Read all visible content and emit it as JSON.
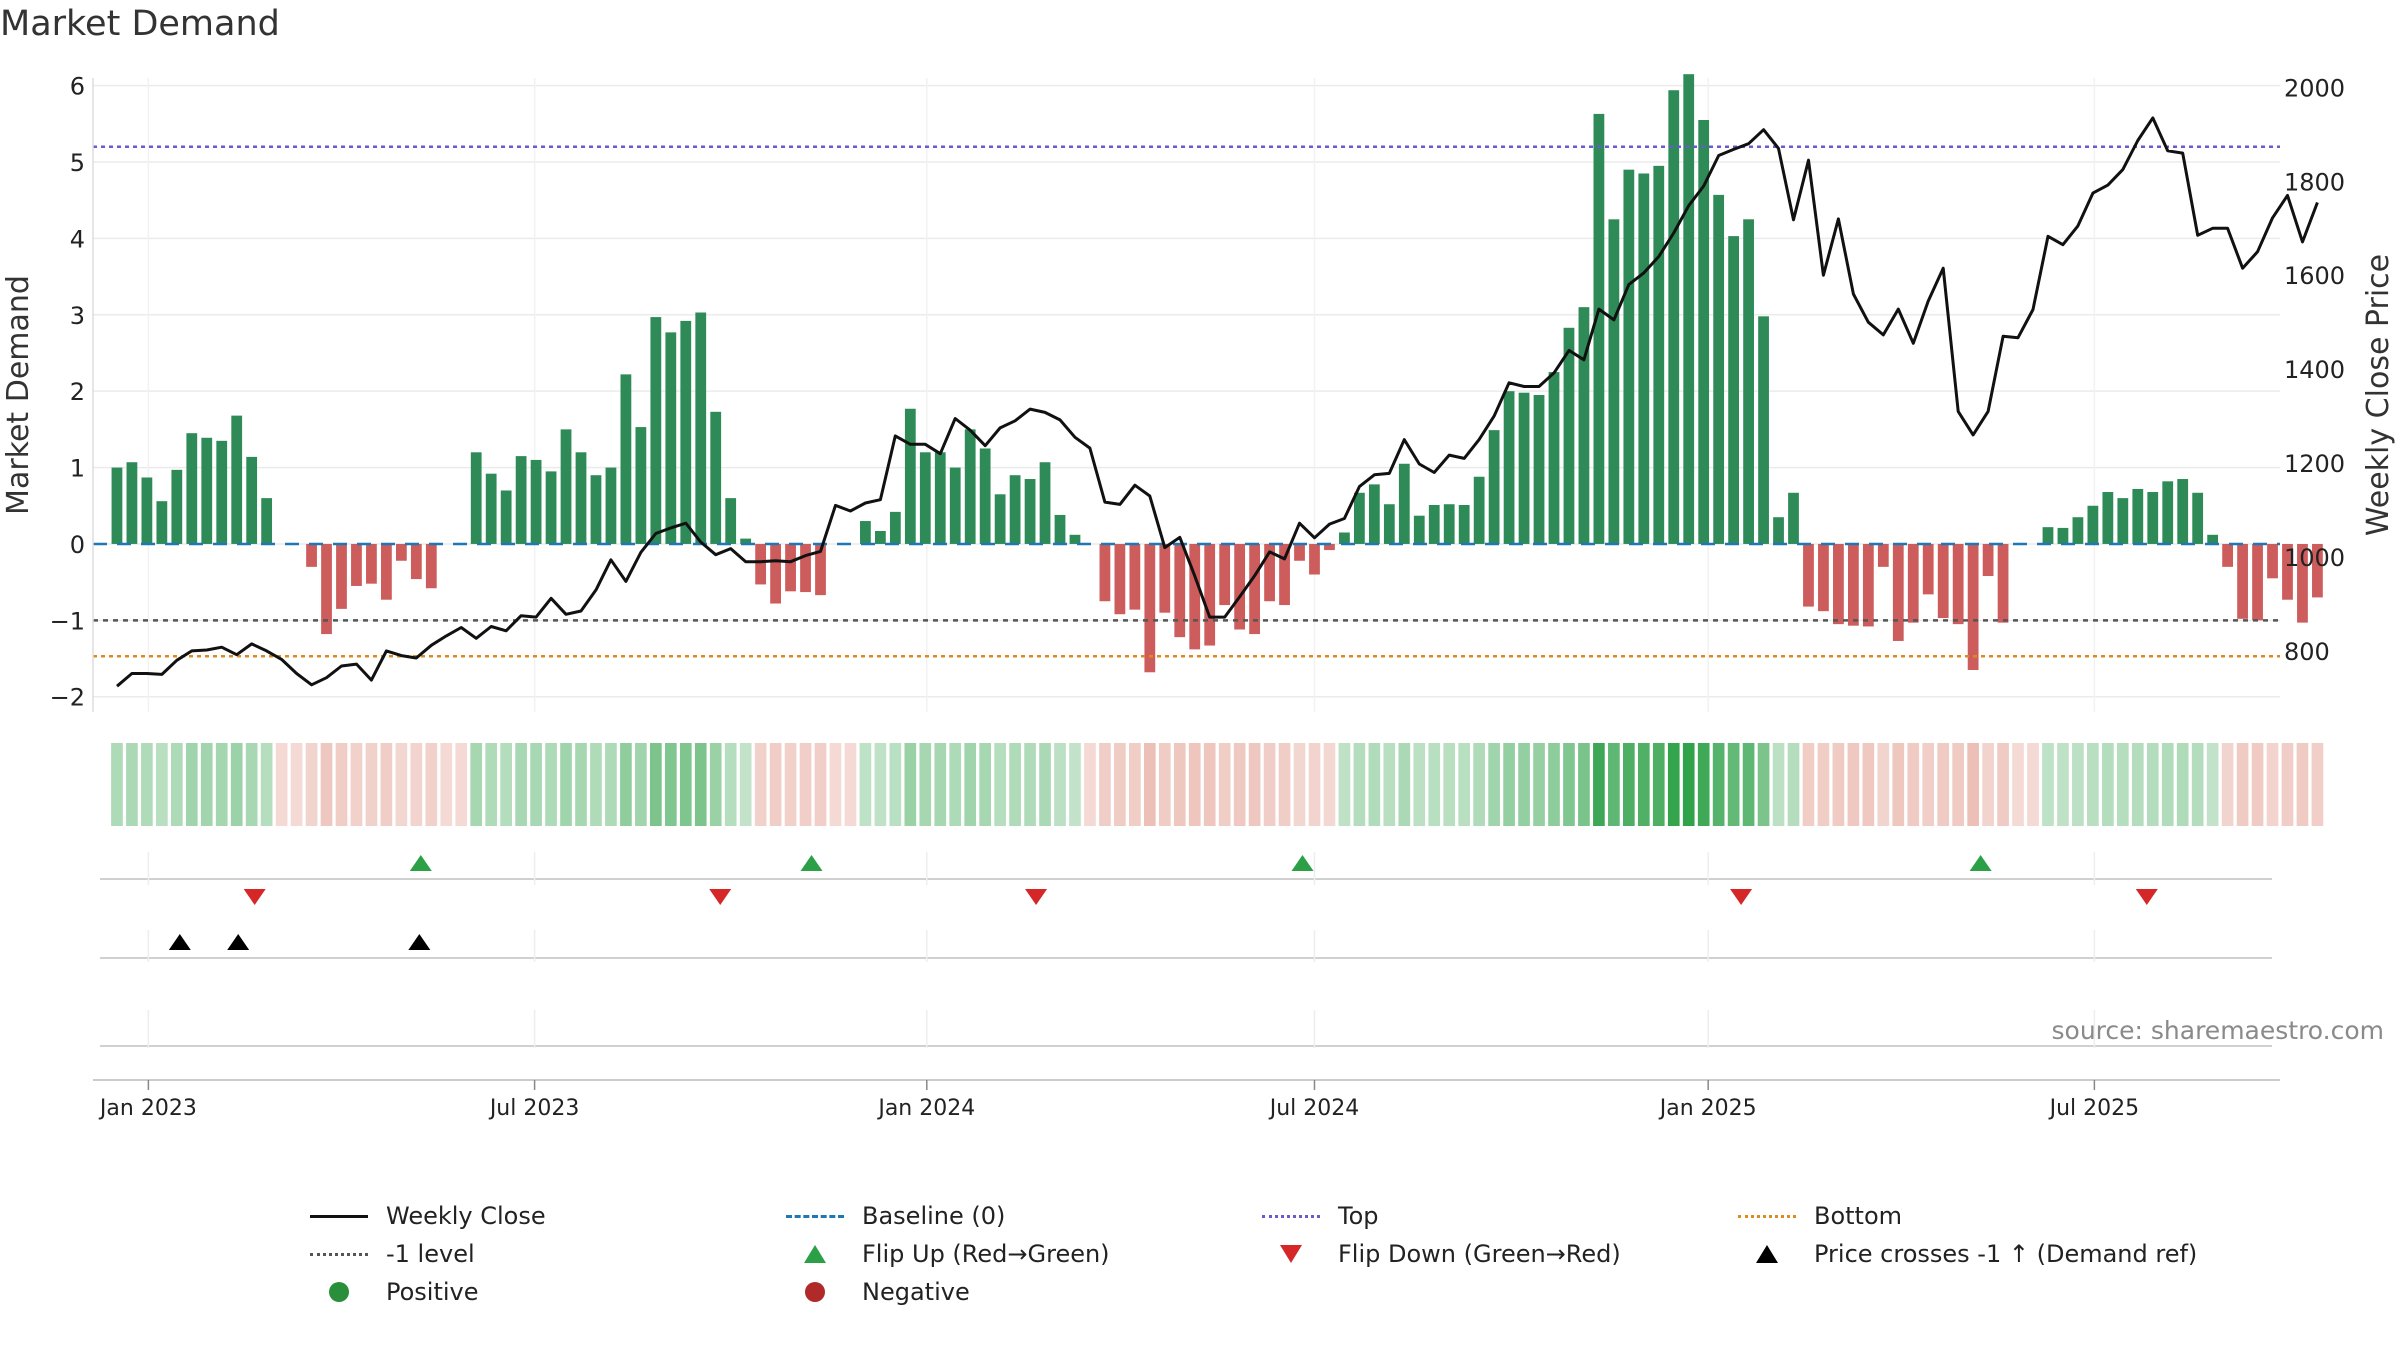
{
  "title": "Market Demand",
  "source": "source: sharemaestro.com",
  "colors": {
    "positive_bar": "#2e8b57",
    "negative_bar": "#cd5c5c",
    "close_line": "#111111",
    "baseline": "#1f77b4",
    "top": "#6a5acd",
    "bottom": "#e08a1e",
    "minus1": "#555555",
    "flip_up": "#2ca046",
    "flip_down": "#d62728",
    "cross": "#000000",
    "heat_pos": "#2ca046",
    "heat_neg": "#d9826f"
  },
  "chart_data": {
    "type": "bar+line",
    "title": "Market Demand",
    "ylabel": "Market Demand",
    "y2label": "Weekly Close Price",
    "ylim": [
      -2.2,
      6.1
    ],
    "y2lim": [
      670,
      2020
    ],
    "yticks": [
      -2,
      -1,
      0,
      1,
      2,
      3,
      4,
      5,
      6
    ],
    "ytick_labels": [
      "−2",
      "−1",
      "0",
      "1",
      "2",
      "3",
      "4",
      "5",
      "6"
    ],
    "y2ticks": [
      800,
      1000,
      1200,
      1400,
      1600,
      1800,
      2000
    ],
    "y2tick_labels": [
      "800",
      "1000",
      "1200",
      "1400",
      "1600",
      "1800",
      "2000"
    ],
    "x_start": "2022-12-19",
    "x_range_weeks": [
      -1.6,
      144.5
    ],
    "xticks": [
      {
        "label": "Jan 2023",
        "week": 2.1
      },
      {
        "label": "Jul 2023",
        "week": 27.9
      },
      {
        "label": "Jan 2024",
        "week": 54.1
      },
      {
        "label": "Jul 2024",
        "week": 80.0
      },
      {
        "label": "Jan 2025",
        "week": 106.3
      },
      {
        "label": "Jul 2025",
        "week": 132.1
      }
    ],
    "reference_lines": {
      "top": 5.2,
      "bottom": -1.47,
      "minus1": -1.0,
      "baseline": 0
    },
    "series": [
      {
        "name": "Market Demand",
        "type": "bar",
        "values": [
          1.0,
          1.07,
          0.87,
          0.56,
          0.97,
          1.45,
          1.39,
          1.35,
          1.68,
          1.14,
          0.6,
          0,
          0,
          -0.3,
          -1.18,
          -0.85,
          -0.55,
          -0.52,
          -0.73,
          -0.22,
          -0.46,
          -0.58,
          0,
          0,
          1.2,
          0.92,
          0.7,
          1.15,
          1.1,
          0.95,
          1.5,
          1.2,
          0.9,
          1.0,
          2.22,
          1.53,
          2.97,
          2.77,
          2.92,
          3.03,
          1.73,
          0.6,
          0.07,
          -0.53,
          -0.78,
          -0.62,
          -0.63,
          -0.67,
          0,
          0,
          0.3,
          0.17,
          0.42,
          1.77,
          1.2,
          1.2,
          1.0,
          1.5,
          1.25,
          0.65,
          0.9,
          0.85,
          1.07,
          0.38,
          0.12,
          0,
          -0.75,
          -0.92,
          -0.86,
          -1.68,
          -0.9,
          -1.22,
          -1.38,
          -1.33,
          -0.8,
          -1.12,
          -1.18,
          -0.75,
          -0.8,
          -0.22,
          -0.4,
          -0.08,
          0.15,
          0.67,
          0.78,
          0.52,
          1.05,
          0.37,
          0.51,
          0.52,
          0.51,
          0.88,
          1.49,
          2.0,
          1.98,
          1.95,
          2.25,
          2.83,
          3.1,
          5.63,
          4.25,
          4.9,
          4.85,
          4.95,
          5.94,
          6.15,
          5.55,
          4.57,
          4.03,
          4.25,
          2.98,
          0.35,
          0.67,
          -0.82,
          -0.88,
          -1.05,
          -1.07,
          -1.08,
          -0.3,
          -1.27,
          -1.03,
          -0.66,
          -0.97,
          -1.05,
          -1.65,
          -0.42,
          -1.03,
          0,
          0,
          0.22,
          0.21,
          0.35,
          0.5,
          0.68,
          0.6,
          0.72,
          0.68,
          0.82,
          0.85,
          0.67,
          0.12,
          -0.3,
          -0.98,
          -1.0,
          -0.45,
          -0.73,
          -1.03,
          -0.7
        ]
      },
      {
        "name": "Weekly Close",
        "type": "line",
        "axis": "y2",
        "values": [
          725,
          752,
          752,
          750,
          780,
          800,
          802,
          808,
          792,
          815,
          800,
          782,
          752,
          728,
          743,
          768,
          772,
          738,
          800,
          790,
          785,
          812,
          832,
          850,
          827,
          852,
          843,
          875,
          872,
          912,
          878,
          885,
          930,
          994,
          948,
          1010,
          1050,
          1062,
          1072,
          1032,
          1005,
          1018,
          990,
          990,
          992,
          990,
          1003,
          1012,
          1110,
          1098,
          1115,
          1122,
          1258,
          1240,
          1240,
          1220,
          1295,
          1270,
          1237,
          1275,
          1290,
          1315,
          1308,
          1292,
          1255,
          1232,
          1117,
          1112,
          1153,
          1130,
          1020,
          1042,
          960,
          872,
          872,
          915,
          960,
          1011,
          996,
          1072,
          1041,
          1070,
          1082,
          1150,
          1175,
          1178,
          1250,
          1198,
          1180,
          1217,
          1210,
          1250,
          1300,
          1371,
          1363,
          1363,
          1392,
          1440,
          1420,
          1528,
          1505,
          1580,
          1605,
          1640,
          1690,
          1748,
          1790,
          1855,
          1868,
          1880,
          1910,
          1870,
          1718,
          1845,
          1600,
          1720,
          1560,
          1500,
          1473,
          1528,
          1455,
          1545,
          1615,
          1310,
          1260,
          1310,
          1470,
          1467,
          1527,
          1683,
          1665,
          1705,
          1775,
          1792,
          1825,
          1887,
          1935,
          1865,
          1860,
          1685,
          1700,
          1700,
          1615,
          1650,
          1722,
          1770,
          1671,
          1755
        ]
      }
    ],
    "flip_up_weeks": [
      20.3,
      46.4,
      79.2,
      124.5
    ],
    "flip_down_weeks": [
      9.2,
      40.3,
      61.4,
      108.5,
      135.6
    ],
    "price_cross_weeks": [
      4.2,
      8.1,
      20.2
    ]
  },
  "legend": {
    "items": [
      {
        "label": "Weekly Close",
        "symbol": "line-solid"
      },
      {
        "label": "Baseline (0)",
        "symbol": "line-dash-blue"
      },
      {
        "label": "Top",
        "symbol": "line-dot-purple"
      },
      {
        "label": "Bottom",
        "symbol": "line-dot-orange"
      },
      {
        "label": "-1 level",
        "symbol": "line-dot-gray"
      },
      {
        "label": "Flip Up (Red→Green)",
        "symbol": "tri-up"
      },
      {
        "label": "Flip Down (Green→Red)",
        "symbol": "tri-down"
      },
      {
        "label": "Price crosses -1 ↑ (Demand ref)",
        "symbol": "tri-up-black"
      },
      {
        "label": "Positive",
        "symbol": "dot-green"
      },
      {
        "label": "Negative",
        "symbol": "dot-red"
      }
    ]
  }
}
